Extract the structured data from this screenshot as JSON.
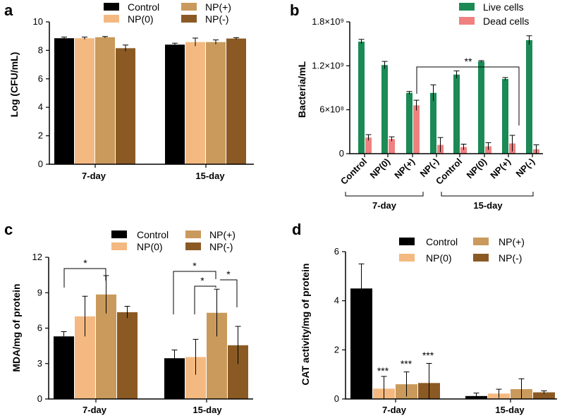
{
  "chart_data": [
    {
      "type": "bar",
      "panel_label": "a",
      "categories": [
        "7-day",
        "15-day"
      ],
      "series": [
        {
          "name": "Control",
          "color": "#000000",
          "values": [
            8.85,
            8.4
          ],
          "errors": [
            0.08,
            0.1
          ]
        },
        {
          "name": "NP(0)",
          "color": "#f4b981",
          "values": [
            8.85,
            8.58
          ],
          "errors": [
            0.08,
            0.28
          ]
        },
        {
          "name": "NP(+)",
          "color": "#c99a5b",
          "values": [
            8.92,
            8.58
          ],
          "errors": [
            0.05,
            0.15
          ]
        },
        {
          "name": "NP(-)",
          "color": "#8b5a24",
          "values": [
            8.15,
            8.83
          ],
          "errors": [
            0.22,
            0.06
          ]
        }
      ],
      "ylabel": "Log (CFU/mL)",
      "xlabel": "",
      "ylim": [
        0,
        10
      ],
      "yticks": [
        "0",
        "2",
        "4",
        "6",
        "8",
        "10"
      ]
    },
    {
      "type": "bar",
      "panel_label": "b",
      "categories": [
        "Control",
        "NP(0)",
        "NP(+)",
        "NP(-)",
        "Control",
        "NP(0)",
        "NP(+)",
        "NP(-)"
      ],
      "groups": [
        "7-day",
        "15-day"
      ],
      "series": [
        {
          "name": "Live cells",
          "color": "#1b8a55",
          "values": [
            1.53,
            1.21,
            0.83,
            0.83,
            1.08,
            1.26,
            1.02,
            1.55
          ],
          "errors": [
            0.03,
            0.05,
            0.02,
            0.11,
            0.05,
            0.01,
            0.02,
            0.06
          ]
        },
        {
          "name": "Dead cells",
          "color": "#f08080",
          "values": [
            0.22,
            0.2,
            0.66,
            0.12,
            0.09,
            0.1,
            0.14,
            0.06
          ],
          "errors": [
            0.04,
            0.03,
            0.07,
            0.1,
            0.04,
            0.05,
            0.11,
            0.06
          ]
        }
      ],
      "ylabel": "Bacteria/mL",
      "ylim": [
        0,
        1.8
      ],
      "yticks": [
        "0",
        "6×10⁸",
        "1.2×10⁹",
        "1.8×10⁹"
      ],
      "annotation": "**"
    },
    {
      "type": "bar",
      "panel_label": "c",
      "categories": [
        "7-day",
        "15-day"
      ],
      "series": [
        {
          "name": "Control",
          "color": "#000000",
          "values": [
            5.3,
            3.45
          ],
          "errors": [
            0.4,
            0.7
          ]
        },
        {
          "name": "NP(0)",
          "color": "#f4b981",
          "values": [
            7.0,
            3.55
          ],
          "errors": [
            1.7,
            1.5
          ]
        },
        {
          "name": "NP(+)",
          "color": "#c99a5b",
          "values": [
            8.85,
            7.3
          ],
          "errors": [
            1.6,
            2.0
          ]
        },
        {
          "name": "NP(-)",
          "color": "#8b5a24",
          "values": [
            7.35,
            4.55
          ],
          "errors": [
            0.5,
            1.6
          ]
        }
      ],
      "ylabel": "MDA/mg of protein",
      "ylim": [
        0,
        12
      ],
      "yticks": [
        "0",
        "3",
        "6",
        "9",
        "12"
      ],
      "annotations": [
        "*",
        "*",
        "*",
        "*"
      ]
    },
    {
      "type": "bar",
      "panel_label": "d",
      "categories": [
        "7-day",
        "15-day"
      ],
      "series": [
        {
          "name": "Control",
          "color": "#000000",
          "values": [
            4.5,
            0.12
          ],
          "errors": [
            1.0,
            0.12
          ]
        },
        {
          "name": "NP(0)",
          "color": "#f4b981",
          "values": [
            0.42,
            0.22
          ],
          "errors": [
            0.5,
            0.18
          ]
        },
        {
          "name": "NP(+)",
          "color": "#c99a5b",
          "values": [
            0.6,
            0.4
          ],
          "errors": [
            0.5,
            0.42
          ]
        },
        {
          "name": "NP(-)",
          "color": "#8b5a24",
          "values": [
            0.65,
            0.27
          ],
          "errors": [
            0.8,
            0.06
          ]
        }
      ],
      "ylabel": "CAT activity/mg of protein",
      "ylim": [
        0,
        6
      ],
      "yticks": [
        "0",
        "2",
        "4",
        "6"
      ],
      "annotations": [
        "***",
        "***",
        "***"
      ]
    }
  ]
}
